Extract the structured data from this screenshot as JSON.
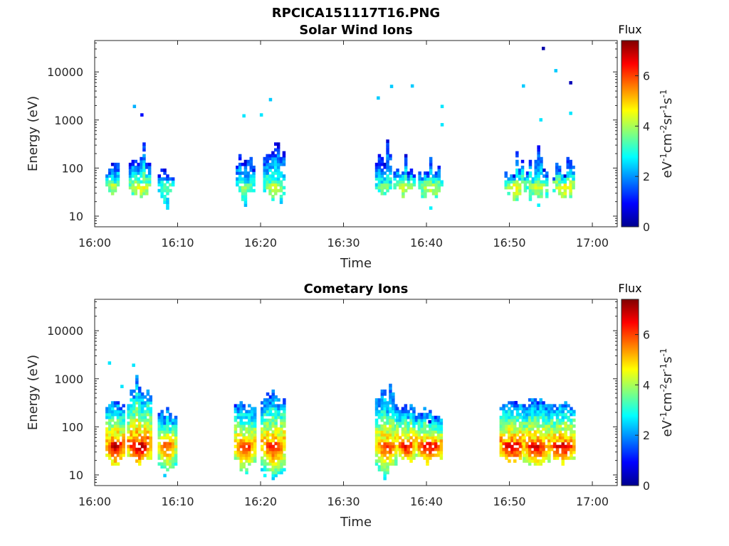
{
  "figure": {
    "title": "RPCICA151117T16.PNG"
  },
  "chart_data": [
    {
      "type": "heatmap",
      "title": "Solar Wind Ions",
      "xlabel": "Time",
      "ylabel": "Energy (eV)",
      "x_ticks": [
        "16:00",
        "16:10",
        "16:20",
        "16:30",
        "16:40",
        "16:50",
        "17:00"
      ],
      "x_range_minutes": [
        0,
        63
      ],
      "y_scale": "log",
      "y_ticks": [
        "10",
        "100",
        "1000",
        "10000"
      ],
      "y_range": [
        6,
        45000
      ],
      "colorbar": {
        "label": "Flux",
        "unit_base": "eV",
        "range": [
          0,
          7.4
        ],
        "ticks": [
          "0",
          "2",
          "4",
          "6"
        ],
        "colormap": "jet"
      },
      "clusters": [
        {
          "t": [
            1.3,
            2.9
          ],
          "e_low": [
            25,
            45
          ],
          "e_high": [
            60,
            320
          ],
          "flux_core": 4.2
        },
        {
          "t": [
            4.1,
            6.6
          ],
          "e_low": [
            18,
            45
          ],
          "e_high": [
            100,
            420
          ],
          "flux_core": 4.6
        },
        {
          "t": [
            7.6,
            9.3
          ],
          "e_low": [
            12,
            45
          ],
          "e_high": [
            60,
            100
          ],
          "flux_core": 3.6
        },
        {
          "t": [
            17.0,
            19.0
          ],
          "e_low": [
            12,
            45
          ],
          "e_high": [
            100,
            280
          ],
          "flux_core": 3.8
        },
        {
          "t": [
            20.3,
            22.8
          ],
          "e_low": [
            12,
            45
          ],
          "e_high": [
            150,
            420
          ],
          "flux_core": 4.2
        },
        {
          "t": [
            33.8,
            35.6
          ],
          "e_low": [
            12,
            45
          ],
          "e_high": [
            120,
            600
          ],
          "flux_core": 3.8
        },
        {
          "t": [
            36.0,
            38.4
          ],
          "e_low": [
            20,
            45
          ],
          "e_high": [
            60,
            200
          ],
          "flux_core": 4.4
        },
        {
          "t": [
            39.0,
            41.8
          ],
          "e_low": [
            12,
            45
          ],
          "e_high": [
            60,
            180
          ],
          "flux_core": 4.4
        },
        {
          "t": [
            49.4,
            51.8
          ],
          "e_low": [
            18,
            45
          ],
          "e_high": [
            60,
            300
          ],
          "flux_core": 4.6
        },
        {
          "t": [
            52.0,
            54.6
          ],
          "e_low": [
            12,
            45
          ],
          "e_high": [
            60,
            400
          ],
          "flux_core": 4.3
        },
        {
          "t": [
            55.2,
            57.8
          ],
          "e_low": [
            18,
            45
          ],
          "e_high": [
            60,
            320
          ],
          "flux_core": 4.7
        }
      ],
      "isolated_points": [
        {
          "t": 4.6,
          "e": 1800,
          "f": 2.2
        },
        {
          "t": 5.5,
          "e": 1200,
          "f": 1.0
        },
        {
          "t": 17.8,
          "e": 1150,
          "f": 2.6
        },
        {
          "t": 19.9,
          "e": 1200,
          "f": 2.6
        },
        {
          "t": 21.0,
          "e": 2500,
          "f": 2.4
        },
        {
          "t": 34.0,
          "e": 2700,
          "f": 2.4
        },
        {
          "t": 35.6,
          "e": 4700,
          "f": 2.4
        },
        {
          "t": 38.1,
          "e": 4800,
          "f": 2.4
        },
        {
          "t": 41.7,
          "e": 1800,
          "f": 2.6
        },
        {
          "t": 41.7,
          "e": 750,
          "f": 2.6
        },
        {
          "t": 51.5,
          "e": 4800,
          "f": 2.4
        },
        {
          "t": 53.9,
          "e": 29000,
          "f": 0.3
        },
        {
          "t": 55.4,
          "e": 10000,
          "f": 2.4
        },
        {
          "t": 57.2,
          "e": 5600,
          "f": 0.4
        },
        {
          "t": 57.2,
          "e": 1300,
          "f": 2.6
        },
        {
          "t": 53.6,
          "e": 950,
          "f": 2.6
        }
      ]
    },
    {
      "type": "heatmap",
      "title": "Cometary Ions",
      "xlabel": "Time",
      "ylabel": "Energy (eV)",
      "x_ticks": [
        "16:00",
        "16:10",
        "16:20",
        "16:30",
        "16:40",
        "16:50",
        "17:00"
      ],
      "x_range_minutes": [
        0,
        63
      ],
      "y_scale": "log",
      "y_ticks": [
        "10",
        "100",
        "1000",
        "10000"
      ],
      "y_range": [
        6,
        45000
      ],
      "colorbar": {
        "label": "Flux",
        "unit_base": "eV",
        "range": [
          0,
          7.4
        ],
        "ticks": [
          "0",
          "2",
          "4",
          "6"
        ],
        "colormap": "jet"
      },
      "clusters": [
        {
          "t": [
            1.3,
            3.4
          ],
          "e_low": [
            12,
            25
          ],
          "e_high": [
            250,
            400
          ],
          "flux_core": 7.0
        },
        {
          "t": [
            3.9,
            6.6
          ],
          "e_low": [
            15,
            25
          ],
          "e_high": [
            300,
            1200
          ],
          "flux_core": 7.2
        },
        {
          "t": [
            7.6,
            9.6
          ],
          "e_low": [
            7,
            20
          ],
          "e_high": [
            150,
            280
          ],
          "flux_core": 6.0
        },
        {
          "t": [
            16.8,
            19.2
          ],
          "e_low": [
            10,
            20
          ],
          "e_high": [
            250,
            330
          ],
          "flux_core": 6.4
        },
        {
          "t": [
            20.0,
            22.8
          ],
          "e_low": [
            6,
            15
          ],
          "e_high": [
            300,
            550
          ],
          "flux_core": 6.6
        },
        {
          "t": [
            33.8,
            36.3
          ],
          "e_low": [
            7,
            20
          ],
          "e_high": [
            300,
            1000
          ],
          "flux_core": 6.4
        },
        {
          "t": [
            36.3,
            38.6
          ],
          "e_low": [
            15,
            25
          ],
          "e_high": [
            200,
            330
          ],
          "flux_core": 6.5
        },
        {
          "t": [
            38.6,
            41.9
          ],
          "e_low": [
            15,
            25
          ],
          "e_high": [
            150,
            300
          ],
          "flux_core": 6.6
        },
        {
          "t": [
            48.8,
            51.6
          ],
          "e_low": [
            15,
            25
          ],
          "e_high": [
            250,
            350
          ],
          "flux_core": 7.0
        },
        {
          "t": [
            51.6,
            54.6
          ],
          "e_low": [
            12,
            20
          ],
          "e_high": [
            250,
            400
          ],
          "flux_core": 6.8
        },
        {
          "t": [
            54.6,
            57.8
          ],
          "e_low": [
            15,
            25
          ],
          "e_high": [
            250,
            380
          ],
          "flux_core": 6.8
        }
      ],
      "isolated_points": [
        {
          "t": 1.6,
          "e": 2000,
          "f": 2.6
        },
        {
          "t": 4.5,
          "e": 1800,
          "f": 2.6
        },
        {
          "t": 3.1,
          "e": 650,
          "f": 2.6
        },
        {
          "t": 40.2,
          "e": 120,
          "f": 0.6
        },
        {
          "t": 50.6,
          "e": 300,
          "f": 1.0
        }
      ]
    }
  ]
}
